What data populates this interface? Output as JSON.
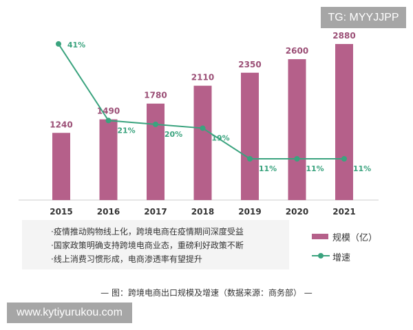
{
  "chart_data": {
    "type": "bar+line",
    "categories": [
      "2015",
      "2016",
      "2017",
      "2018",
      "2019",
      "2020",
      "2021"
    ],
    "series": [
      {
        "name": "规模（亿）",
        "type": "bar",
        "values": [
          1240,
          1490,
          1780,
          2110,
          2350,
          2600,
          2880
        ],
        "labels": [
          "1240",
          "1490",
          "1780",
          "2110",
          "2350",
          "2600",
          "2880"
        ],
        "color": "#b5608a"
      },
      {
        "name": "增速",
        "type": "line",
        "values": [
          41,
          21,
          20,
          19,
          11,
          11,
          11
        ],
        "labels": [
          "41%",
          "21%",
          "20%",
          "19%",
          "11%",
          "11%",
          "11%"
        ],
        "color": "#3aa37e"
      }
    ],
    "grid": false,
    "legend": "bottom-right"
  },
  "notes": [
    "·疫情推动购物线上化，跨境电商在疫情期间深度受益",
    "·国家政策明确支持跨境电商业态，重磅利好政策不断",
    "·线上消费习惯形成，电商渗透率有望提升"
  ],
  "caption": "— 图：跨境电商出口规模及增速（数据来源：商务部） —",
  "watermark_top": "TG: MYYJJPP",
  "watermark_bottom": "www.kytiyurukou.com"
}
